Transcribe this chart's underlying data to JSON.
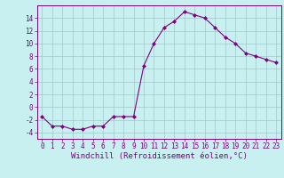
{
  "x": [
    0,
    1,
    2,
    3,
    4,
    5,
    6,
    7,
    8,
    9,
    10,
    11,
    12,
    13,
    14,
    15,
    16,
    17,
    18,
    19,
    20,
    21,
    22,
    23
  ],
  "y": [
    -1.5,
    -3.0,
    -3.0,
    -3.5,
    -3.5,
    -3.0,
    -3.0,
    -1.5,
    -1.5,
    -1.5,
    6.5,
    10.0,
    12.5,
    13.5,
    15.0,
    14.5,
    14.0,
    12.5,
    11.0,
    10.0,
    8.5,
    8.0,
    7.5,
    7.0
  ],
  "line_color": "#800080",
  "marker": "D",
  "marker_size": 2,
  "background_color": "#c8f0f0",
  "grid_color": "#a0c8c8",
  "xlabel": "Windchill (Refroidissement éolien,°C)",
  "xlim": [
    -0.5,
    23.5
  ],
  "ylim": [
    -5,
    16
  ],
  "yticks": [
    -4,
    -2,
    0,
    2,
    4,
    6,
    8,
    10,
    12,
    14
  ],
  "xticks": [
    0,
    1,
    2,
    3,
    4,
    5,
    6,
    7,
    8,
    9,
    10,
    11,
    12,
    13,
    14,
    15,
    16,
    17,
    18,
    19,
    20,
    21,
    22,
    23
  ],
  "tick_fontsize": 5.5,
  "label_fontsize": 6.5
}
